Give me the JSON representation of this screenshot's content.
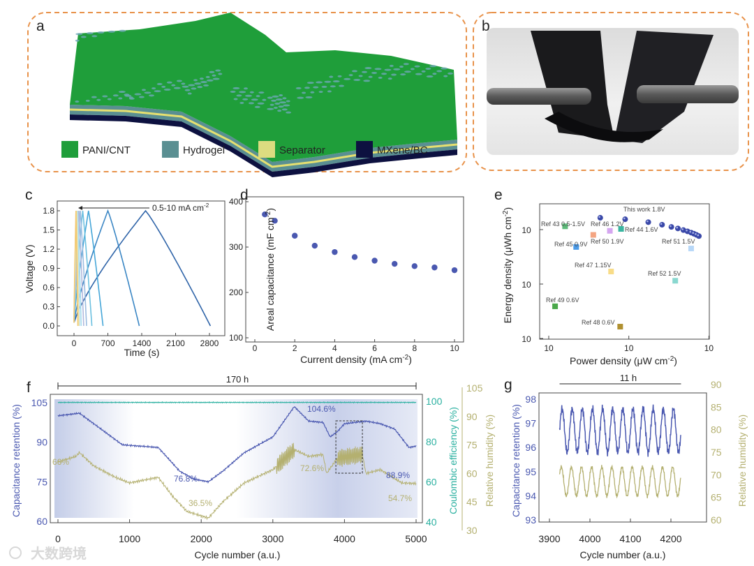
{
  "panels": {
    "a": {
      "letter": "a",
      "legend": [
        {
          "label": "PANI/CNT",
          "color": "#1f9e3a"
        },
        {
          "label": "Hydrogel",
          "color": "#5a8f92"
        },
        {
          "label": "Separator",
          "color": "#dcdc80"
        },
        {
          "label": "MXene/BC",
          "color": "#0d1140"
        }
      ]
    },
    "b": {
      "letter": "b"
    },
    "frame_color": "#e8924a"
  },
  "watermark": "大数跨境",
  "chart_data": [
    {
      "id": "c",
      "letter": "c",
      "type": "line",
      "xlabel": "Time (s)",
      "ylabel": "Voltage (V)",
      "x_ticks": [
        "0",
        "700",
        "1400",
        "2100",
        "2800"
      ],
      "y_ticks": [
        "0.0",
        "0.3",
        "0.6",
        "0.9",
        "1.2",
        "1.5",
        "1.8"
      ],
      "annotation": "0.5-10 mA cm",
      "annotation_sup": "-2",
      "vmax": 1.8,
      "series": [
        {
          "charge_end": 1480,
          "discharge_end": 2820,
          "color": "#2f64a8"
        },
        {
          "charge_end": 700,
          "discharge_end": 1350,
          "color": "#3a86c4"
        },
        {
          "charge_end": 300,
          "discharge_end": 600,
          "color": "#45a6d8"
        },
        {
          "charge_end": 180,
          "discharge_end": 370,
          "color": "#6cc0e0"
        },
        {
          "charge_end": 130,
          "discharge_end": 260,
          "color": "#9bbce0"
        },
        {
          "charge_end": 100,
          "discharge_end": 200,
          "color": "#b0b8dc"
        },
        {
          "charge_end": 75,
          "discharge_end": 150,
          "color": "#a8dcf0"
        },
        {
          "charge_end": 60,
          "discharge_end": 120,
          "color": "#c8e4e8"
        },
        {
          "charge_end": 50,
          "discharge_end": 95,
          "color": "#f5e6a0"
        },
        {
          "charge_end": 40,
          "discharge_end": 80,
          "color": "#f2c872"
        }
      ]
    },
    {
      "id": "d",
      "letter": "d",
      "type": "scatter",
      "xlabel": "Current density (mA cm",
      "xlabel_sup": "-2",
      "xlabel_end": ")",
      "ylabel": "Areal capacitance (mF cm",
      "ylabel_sup": "-2",
      "ylabel_end": ")",
      "x_ticks": [
        "0",
        "2",
        "4",
        "6",
        "8",
        "10"
      ],
      "y_ticks": [
        "100",
        "200",
        "300",
        "400"
      ],
      "xlim": [
        0,
        10
      ],
      "ylim": [
        100,
        400
      ],
      "x": [
        0.5,
        1,
        2,
        3,
        4,
        5,
        6,
        7,
        8,
        9,
        10
      ],
      "y": [
        372,
        358,
        325,
        303,
        289,
        278,
        270,
        263,
        258,
        255,
        249
      ],
      "color": "#4a58b0"
    },
    {
      "id": "e",
      "letter": "e",
      "type": "scatter",
      "xlabel": "Power density (μW cm",
      "xlabel_sup": "-2",
      "xlabel_end": ")",
      "ylabel": "Energy density (μWh cm",
      "ylabel_sup": "-2",
      "ylabel_end": ")",
      "x_ticks": [
        "10",
        "10",
        "10"
      ],
      "x_tick_exp": [
        "2",
        "3",
        "4"
      ],
      "y_ticks": [
        "10",
        "10",
        "10"
      ],
      "y_tick_exp": [
        "0",
        "1",
        "2"
      ],
      "scale": "log",
      "this_work": {
        "label": "This work 1.8V",
        "color": "#3a48a8",
        "x": [
          440,
          900,
          1750,
          2600,
          3400,
          4100,
          4800,
          5400,
          6000,
          6500,
          7000,
          7500
        ],
        "y": [
          165,
          155,
          137,
          123,
          112,
          105,
          98,
          93,
          88,
          84,
          80,
          76
        ]
      },
      "refs": [
        {
          "label": "Ref 43 0.5-1.5V",
          "x": 160,
          "y": 115,
          "color": "#5dbb7a"
        },
        {
          "label": "Ref 46 1.2V",
          "x": 360,
          "y": 80,
          "color": "#f4a582"
        },
        {
          "label": "Ref 50 1.9V",
          "x": 580,
          "y": 95,
          "color": "#d5a6f0"
        },
        {
          "label": "Ref 44 1.6V",
          "x": 800,
          "y": 103,
          "color": "#3ab5a0"
        },
        {
          "label": "Ref 45 0.9V",
          "x": 220,
          "y": 48,
          "color": "#4b9be8"
        },
        {
          "label": "Ref 51 1.5V",
          "x": 6000,
          "y": 45,
          "color": "#b8d8f8"
        },
        {
          "label": "Ref 47 1.15V",
          "x": 600,
          "y": 17,
          "color": "#f8dc88"
        },
        {
          "label": "Ref 52 1.5V",
          "x": 3800,
          "y": 11.5,
          "color": "#8ad8d0"
        },
        {
          "label": "Ref 49 0.6V",
          "x": 120,
          "y": 3.9,
          "color": "#4aa84a"
        },
        {
          "label": "Ref 48 0.6V",
          "x": 780,
          "y": 1.65,
          "color": "#b09030"
        }
      ]
    },
    {
      "id": "f",
      "letter": "f",
      "type": "line",
      "duration": "170 h",
      "xlabel": "Cycle number (a.u.)",
      "ylabel_left": "Capacitance retention (%)",
      "ylabel_ce": "Coulombic efficiency (%)",
      "ylabel_rh": "Relative humidity (%)",
      "x_ticks": [
        "0",
        "1000",
        "2000",
        "3000",
        "4000",
        "5000"
      ],
      "y_ticks_left": [
        "60",
        "75",
        "90",
        "105"
      ],
      "y_ticks_ce": [
        "40",
        "60",
        "80",
        "100"
      ],
      "y_ticks_rh": [
        "30",
        "45",
        "60",
        "75",
        "90",
        "105"
      ],
      "colors": {
        "capacitance": "#4a58b0",
        "ce": "#2ab0a0",
        "rh": "#b4b070"
      },
      "capacitance": {
        "x": [
          0,
          300,
          500,
          900,
          1400,
          1700,
          1900,
          2100,
          2300,
          2600,
          3000,
          3300,
          3500,
          3700,
          3800,
          3900,
          4000,
          4300,
          4500,
          4700,
          4900,
          5000
        ],
        "y": [
          100,
          101,
          97,
          89,
          88,
          79,
          76,
          75,
          79,
          86,
          92,
          103.5,
          98,
          97.5,
          92,
          94,
          97,
          98,
          97,
          95,
          88,
          88.5
        ]
      },
      "ce_value": 99.5,
      "rh": {
        "x": [
          0,
          250,
          300,
          500,
          800,
          1000,
          1400,
          1600,
          1800,
          2100,
          2300,
          2600,
          3000,
          3300,
          3500,
          3700,
          3750,
          3900,
          4250,
          4300,
          4500,
          4800,
          5000
        ],
        "y": [
          66,
          69,
          71,
          64,
          58,
          55,
          58,
          48,
          40,
          36.5,
          45,
          55,
          62,
          72.6,
          69,
          70,
          60,
          68,
          70,
          60,
          62,
          55,
          54.7
        ]
      },
      "annotations": {
        "cap_max": "104.6%",
        "cap_min": "76.8%",
        "cap_end": "88.9%",
        "rh_start": "66%",
        "rh_max": "72.6%",
        "rh_min": "36.5%",
        "rh_end": "54.7%"
      }
    },
    {
      "id": "g",
      "letter": "g",
      "type": "line",
      "duration": "11 h",
      "xlabel": "Cycle number (a.u.)",
      "ylabel_left": "Capacitance retention (%)",
      "ylabel_rh": "Relative humidity (%)",
      "x_ticks": [
        "3900",
        "4000",
        "4100",
        "4200"
      ],
      "y_ticks_left": [
        "93",
        "94",
        "95",
        "96",
        "97",
        "98"
      ],
      "y_ticks_rh": [
        "60",
        "65",
        "70",
        "75",
        "80",
        "85",
        "90"
      ],
      "cycle_range": [
        3925,
        4225
      ],
      "period_cycles": 25,
      "capacitance_mean": 96.7,
      "capacitance_amplitude": 0.9,
      "rh_mean": 68.5,
      "rh_amplitude": 3.2
    }
  ]
}
